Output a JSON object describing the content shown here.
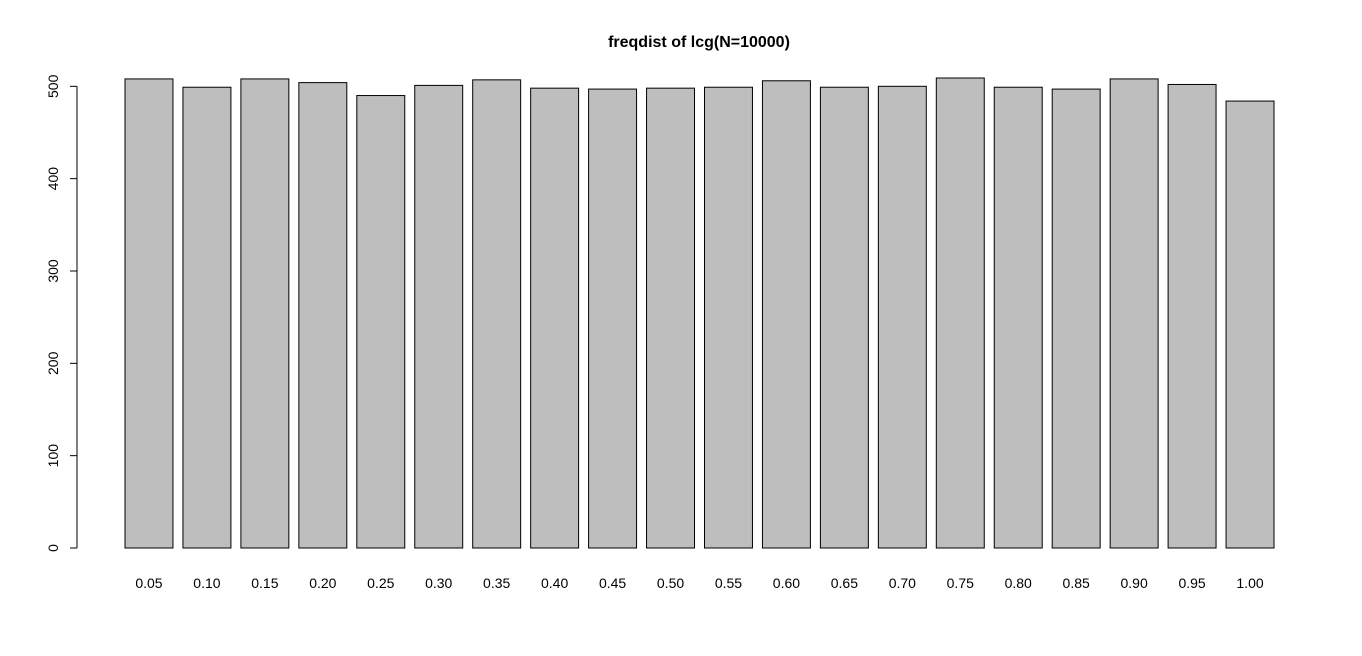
{
  "chart_data": {
    "type": "bar",
    "title": "freqdist of lcg(N=10000)",
    "xlabel": "",
    "ylabel": "",
    "categories": [
      "0.05",
      "0.10",
      "0.15",
      "0.20",
      "0.25",
      "0.30",
      "0.35",
      "0.40",
      "0.45",
      "0.50",
      "0.55",
      "0.60",
      "0.65",
      "0.70",
      "0.75",
      "0.80",
      "0.85",
      "0.90",
      "0.95",
      "1.00"
    ],
    "values": [
      508,
      499,
      508,
      504,
      490,
      501,
      507,
      498,
      497,
      498,
      499,
      506,
      499,
      500,
      509,
      499,
      497,
      508,
      502,
      484
    ],
    "yticks": [
      0,
      100,
      200,
      300,
      400,
      500
    ],
    "ylim": [
      0,
      509
    ],
    "grid": false,
    "legend": "none",
    "colors": {
      "bar_fill": "#bebebe",
      "bar_stroke": "#000000",
      "axis": "#000000"
    }
  }
}
